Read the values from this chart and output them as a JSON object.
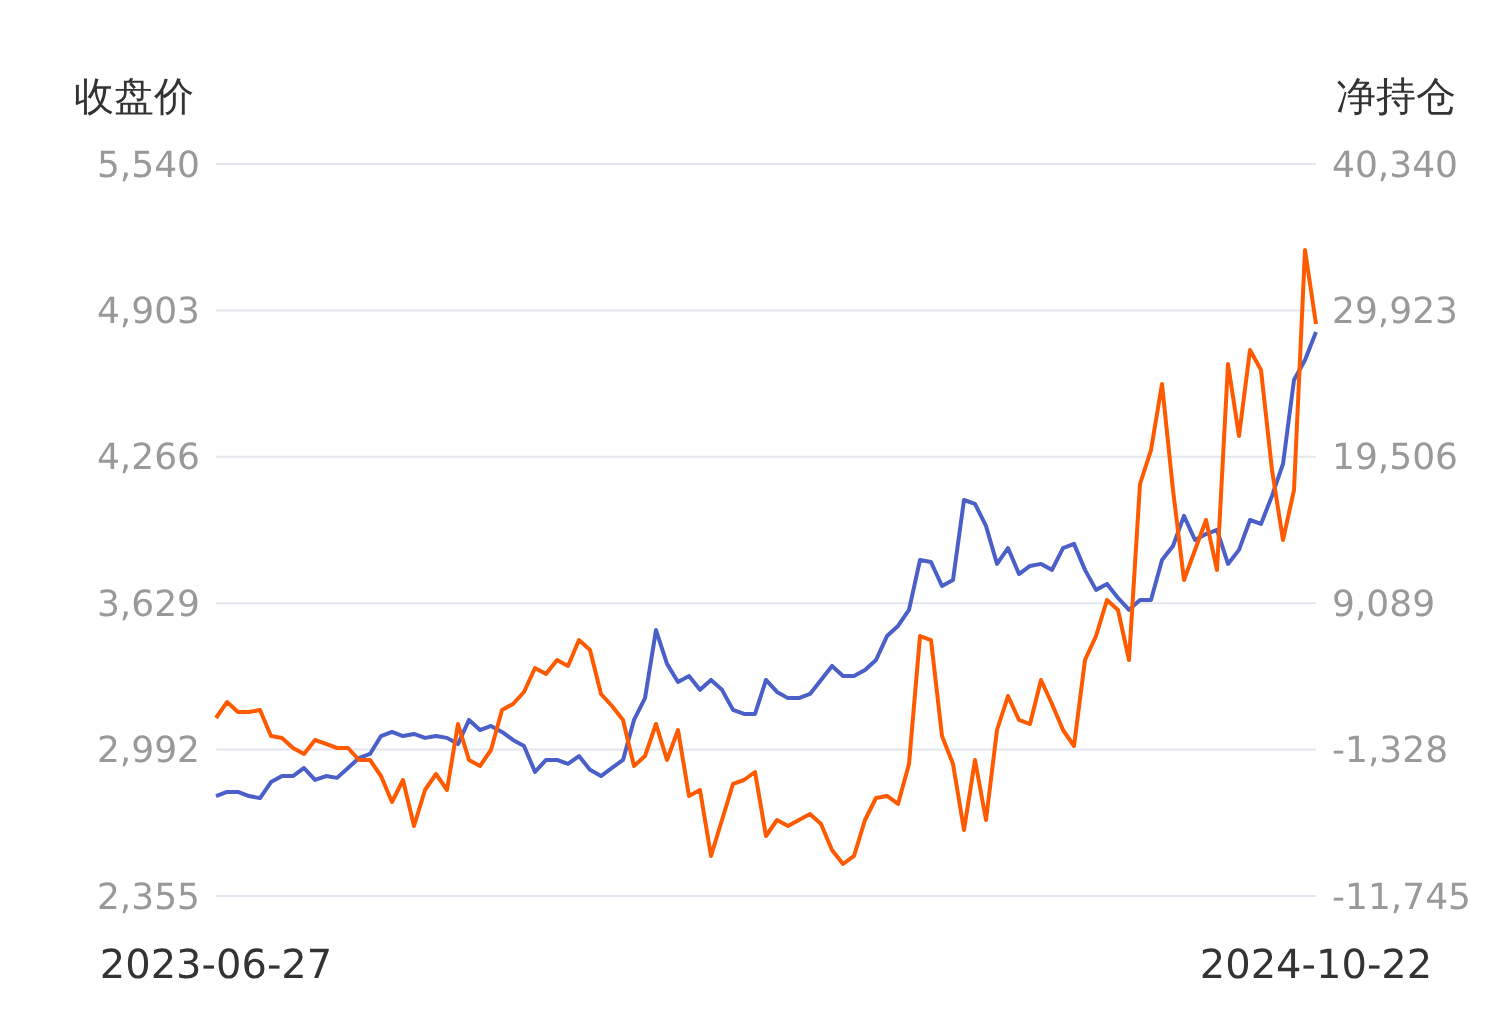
{
  "chart_data": {
    "type": "line",
    "ylabel": "收盘价",
    "y2label": "净持仓",
    "categories": [
      "2023-06-27",
      null,
      null,
      null,
      null,
      null,
      null,
      null,
      null,
      null,
      null,
      null,
      null,
      null,
      null,
      null,
      null,
      null,
      null,
      null,
      null,
      null,
      null,
      null,
      null,
      null,
      null,
      null,
      null,
      null,
      null,
      null,
      null,
      null,
      null,
      null,
      null,
      null,
      null,
      null,
      null,
      null,
      null,
      null,
      null,
      null,
      null,
      null,
      null,
      null,
      null,
      null,
      null,
      null,
      null,
      null,
      null,
      null,
      null,
      null,
      null,
      null,
      null,
      null,
      null,
      null,
      null,
      null,
      null,
      null,
      null,
      null,
      null,
      null,
      null,
      null,
      null,
      null,
      null,
      null,
      null,
      null,
      null,
      null,
      null,
      null,
      null,
      null,
      null,
      null,
      null,
      null,
      null,
      null,
      null,
      null,
      null,
      null,
      null,
      null,
      "2024-10-22"
    ],
    "series": [
      {
        "color": "#4a5fc8",
        "values": [
          2790,
          2808,
          2808,
          2790,
          2781,
          2851,
          2877,
          2877,
          2912,
          2860,
          2877,
          2869,
          2912,
          2955,
          2973,
          3051,
          3069,
          3051,
          3060,
          3043,
          3051,
          3043,
          3016,
          3121,
          3077,
          3095,
          3069,
          3034,
          3008,
          2895,
          2947,
          2947,
          2930,
          2964,
          2904,
          2877,
          2912,
          2947,
          3121,
          3216,
          3512,
          3365,
          3286,
          3312,
          3252,
          3295,
          3252,
          3165,
          3147,
          3147,
          3295,
          3243,
          3216,
          3216,
          3234,
          3295,
          3356,
          3312,
          3312,
          3338,
          3382,
          3486,
          3530,
          3600,
          3817,
          3808,
          3704,
          3730,
          4078,
          4061,
          3965,
          3800,
          3869,
          3756,
          3791,
          3800,
          3774,
          3869,
          3887,
          3774,
          3687,
          3713,
          3652,
          3600,
          3643,
          3643,
          3817,
          3878,
          4009,
          3904,
          3930,
          3948,
          3800,
          3861,
          3991,
          3974,
          4096,
          4235,
          4600,
          4687,
          4809
        ]
      },
      {
        "color": "#ff5a00",
        "axis": "y2",
        "values": [
          920,
          2058,
          1347,
          1347,
          1489,
          -360,
          -502,
          -1214,
          -1641,
          -645,
          -929,
          -1214,
          -1214,
          -2068,
          -2068,
          -3206,
          -5056,
          -3491,
          -6764,
          -4202,
          -3064,
          -4202,
          493,
          -2068,
          -2495,
          -1357,
          1489,
          1916,
          2770,
          4478,
          4051,
          5047,
          4620,
          6470,
          5759,
          2628,
          1774,
          779,
          -2495,
          -1783,
          493,
          -2068,
          66,
          -4629,
          -4202,
          -8898,
          -6337,
          -3775,
          -3491,
          -2922,
          -7476,
          -6337,
          -6764,
          -6337,
          -5909,
          -6622,
          -8472,
          -9468,
          -8898,
          -6337,
          -4771,
          -4629,
          -5198,
          -2353,
          6754,
          6470,
          -360,
          -2353,
          -7049,
          -2068,
          -6337,
          66,
          2485,
          779,
          493,
          3624,
          1916,
          66,
          -1072,
          5047,
          6754,
          9316,
          8604,
          5047,
          17570,
          19989,
          24686,
          17143,
          10740,
          12875,
          15010,
          11452,
          26108,
          20985,
          27105,
          25681,
          18566,
          13587,
          17143,
          34220,
          28954
        ]
      }
    ],
    "ylim": [
      2355,
      5540
    ],
    "yticks": [
      {
        "value": 2355,
        "label": "2,355"
      },
      {
        "value": 2992,
        "label": "2,992"
      },
      {
        "value": 3629,
        "label": "3,629"
      },
      {
        "value": 4266,
        "label": "4,266"
      },
      {
        "value": 4903,
        "label": "4,903"
      },
      {
        "value": 5540,
        "label": "5,540"
      }
    ],
    "y2lim": [
      -11745,
      40340
    ],
    "y2ticks": [
      {
        "value": -11745,
        "label": "-11,745"
      },
      {
        "value": -1328,
        "label": "-1,328"
      },
      {
        "value": 9089,
        "label": "9,089"
      },
      {
        "value": 19506,
        "label": "19,506"
      },
      {
        "value": 29923,
        "label": "29,923"
      },
      {
        "value": 40340,
        "label": "40,340"
      }
    ],
    "grid": "y",
    "marker": "none",
    "line_style": "solid"
  }
}
